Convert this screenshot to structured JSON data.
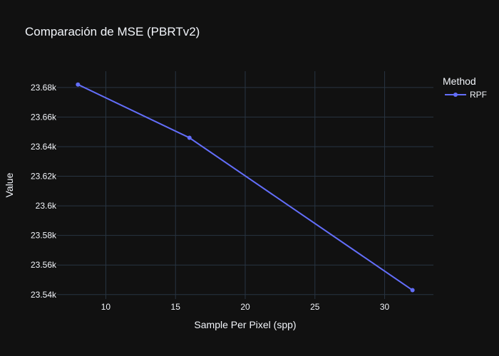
{
  "chart_data": {
    "type": "line",
    "title": "Comparación de MSE (PBRTv2)",
    "xlabel": "Sample Per Pixel (spp)",
    "ylabel": "Value",
    "xlim": [
      6.5,
      33.5
    ],
    "ylim": [
      23537,
      23691
    ],
    "x_ticks": [
      10,
      15,
      20,
      25,
      30
    ],
    "x_tick_labels": [
      "10",
      "15",
      "20",
      "25",
      "30"
    ],
    "y_ticks": [
      23540,
      23560,
      23580,
      23600,
      23620,
      23640,
      23660,
      23680
    ],
    "y_tick_labels": [
      "23.54k",
      "23.56k",
      "23.58k",
      "23.6k",
      "23.62k",
      "23.64k",
      "23.66k",
      "23.68k"
    ],
    "grid": true,
    "legend": {
      "title": "Method",
      "placement": "top-right"
    },
    "series": [
      {
        "name": "RPF",
        "color": "#636efa",
        "x": [
          8,
          16,
          32
        ],
        "y": [
          23682,
          23646,
          23543
        ]
      }
    ]
  }
}
